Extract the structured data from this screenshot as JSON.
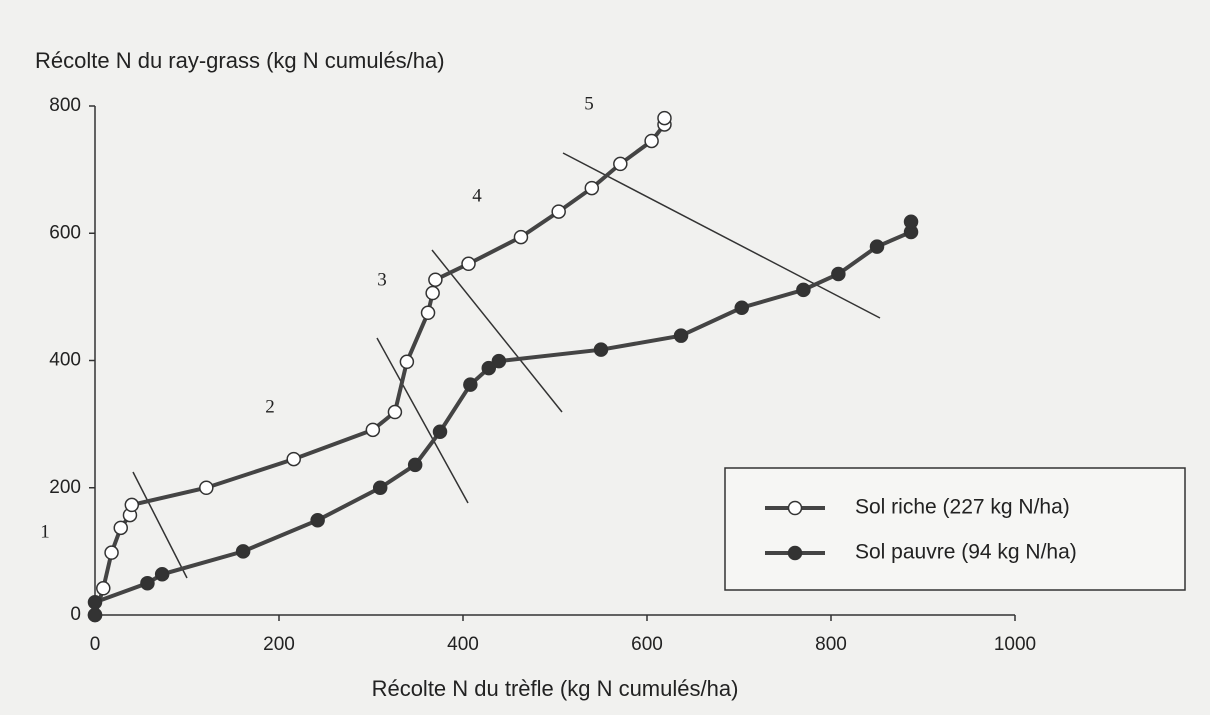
{
  "chart_data": {
    "type": "line",
    "y_label": "Récolte N du ray-grass (kg N cumulés/ha)",
    "x_label": "Récolte N du trèfle (kg N cumulés/ha)",
    "xlim": [
      0,
      1000
    ],
    "xticks": [
      0,
      200,
      400,
      600,
      800,
      1000
    ],
    "ylim": [
      0,
      800
    ],
    "yticks": [
      0,
      200,
      400,
      600,
      800
    ],
    "annotations": [
      "1",
      "2",
      "3",
      "4",
      "5"
    ],
    "legend": "lower right",
    "series": [
      {
        "name": "Sol riche (227 kg N/ha)",
        "color": "#444",
        "marker": "open",
        "x": [
          0,
          9,
          18,
          28,
          38,
          40,
          121,
          216,
          302,
          326,
          339,
          362,
          367,
          370,
          406,
          463,
          504,
          540,
          571,
          605,
          619,
          619
        ],
        "values": [
          0,
          42,
          98,
          137,
          157,
          173,
          200,
          245,
          291,
          319,
          398,
          475,
          506,
          527,
          552,
          594,
          634,
          671,
          709,
          745,
          771,
          781
        ]
      },
      {
        "name": "Sol pauvre (94 kg N/ha)",
        "color": "#444",
        "marker": "filled",
        "x": [
          0,
          0,
          57,
          73,
          161,
          242,
          310,
          348,
          375,
          408,
          428,
          439,
          550,
          637,
          703,
          770,
          808,
          850,
          887,
          887
        ],
        "values": [
          0,
          20,
          50,
          64,
          100,
          149,
          200,
          236,
          288,
          362,
          388,
          399,
          417,
          439,
          483,
          511,
          536,
          579,
          602,
          618
        ]
      }
    ]
  }
}
